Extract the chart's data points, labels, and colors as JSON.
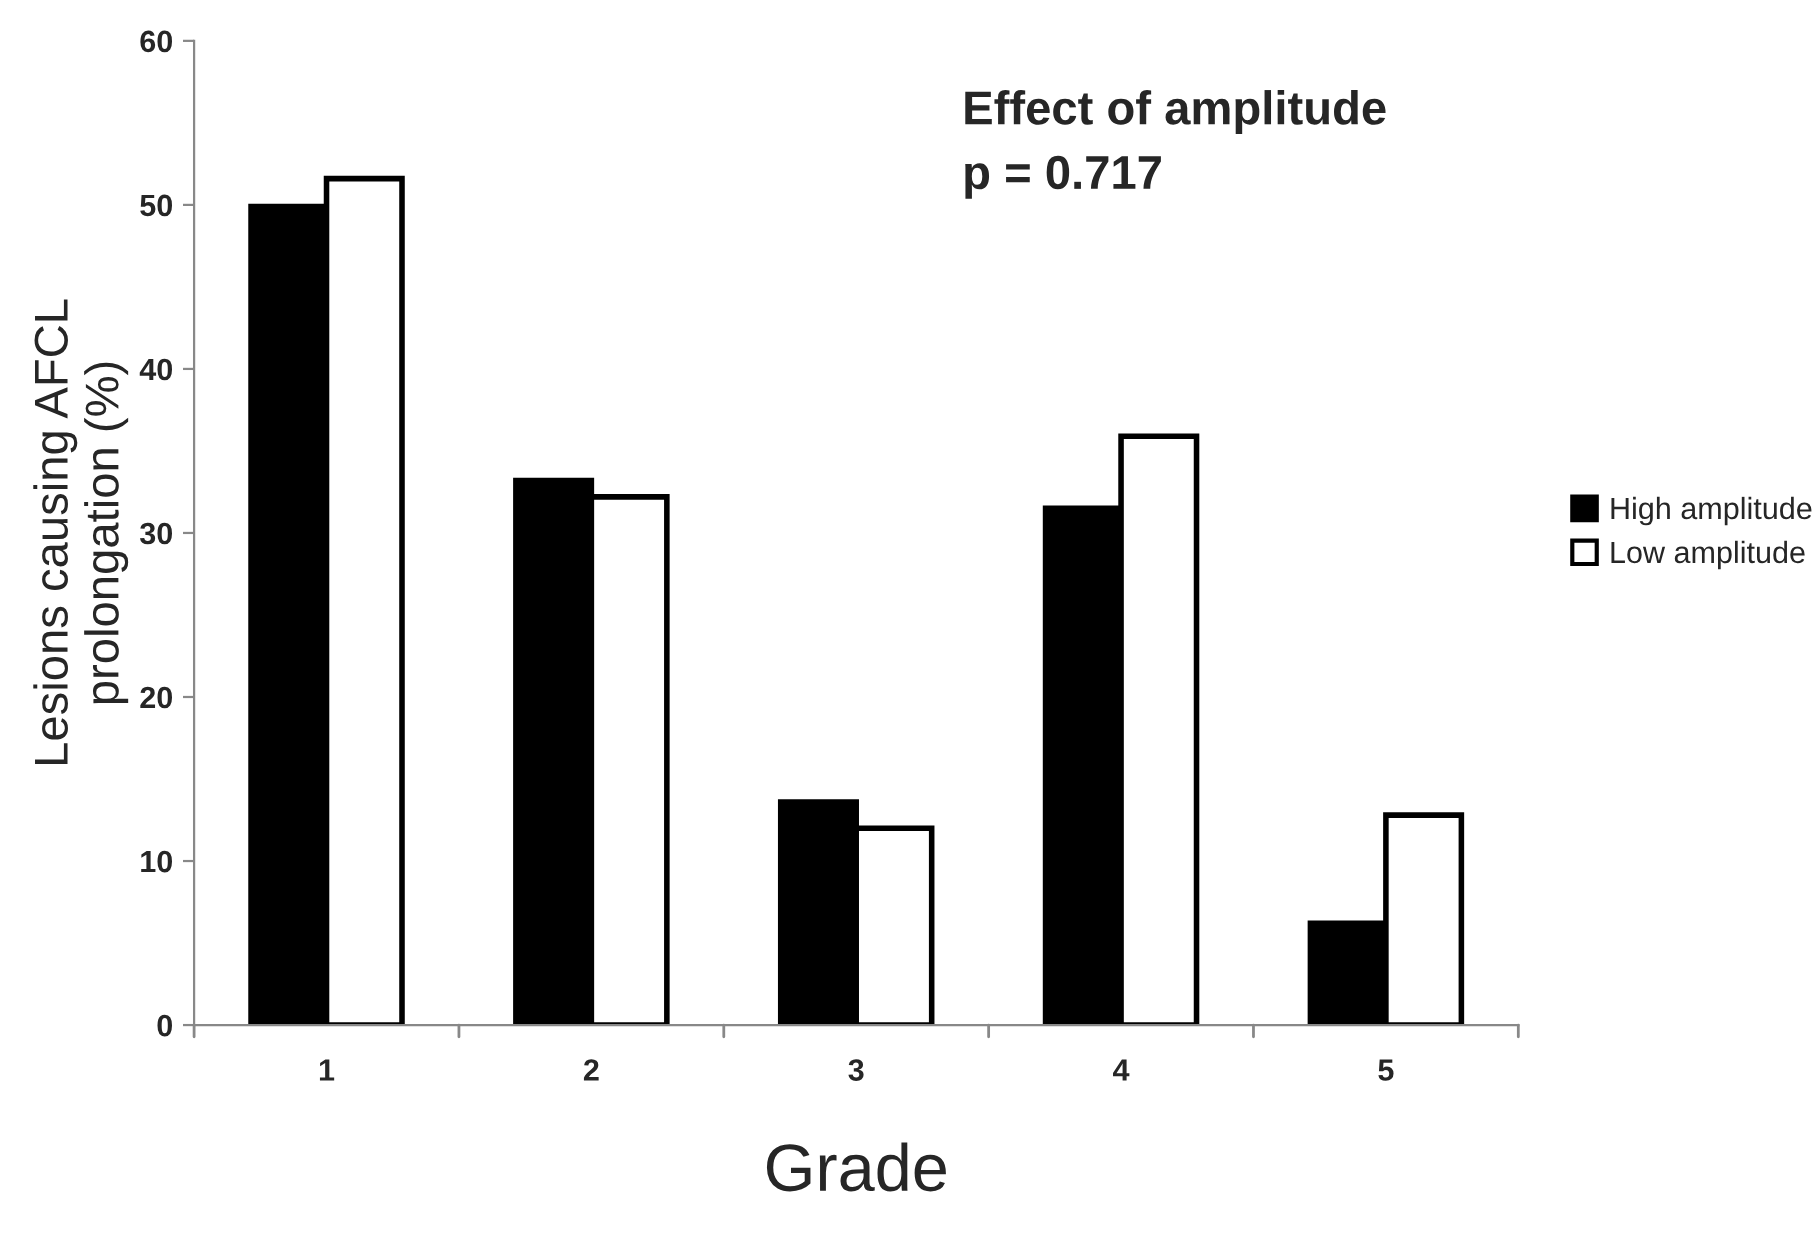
{
  "chart_data": {
    "type": "bar",
    "xlabel": "Grade",
    "ylabel": "Lesions causing AFCL\nprolongation (%)",
    "categories": [
      "1",
      "2",
      "3",
      "4",
      "5"
    ],
    "series": [
      {
        "name": "High amplitude",
        "color": "#000000",
        "values": [
          49.9,
          33.2,
          13.6,
          31.5,
          6.2
        ]
      },
      {
        "name": "Low amplitude",
        "color": "#ffffff",
        "values": [
          51.6,
          32.2,
          12.0,
          35.9,
          12.8
        ]
      }
    ],
    "ylim": [
      0,
      60
    ],
    "yticks": [
      0,
      10,
      20,
      30,
      40,
      50,
      60
    ],
    "grid": false,
    "legend": "right",
    "annotations": [
      {
        "text": "Effect of amplitude\np = 0.717"
      }
    ]
  }
}
